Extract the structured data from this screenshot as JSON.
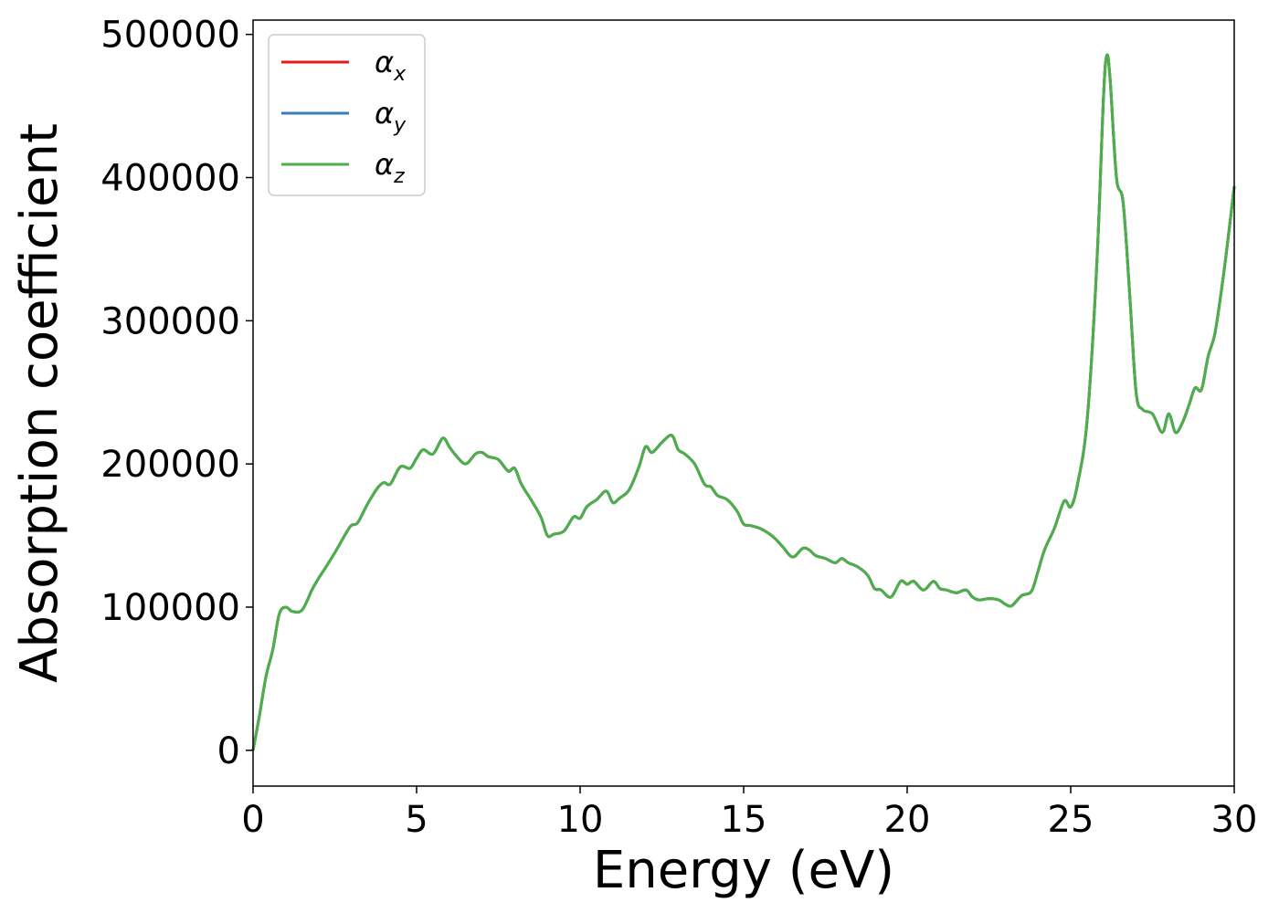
{
  "chart_data": {
    "type": "line",
    "title": "",
    "xlabel": "Energy (eV)",
    "ylabel": "Absorption coefficient",
    "xlim": [
      0,
      30
    ],
    "ylim": [
      -25000,
      510000
    ],
    "xticks": [
      0,
      5,
      10,
      15,
      20,
      25,
      30
    ],
    "yticks": [
      0,
      100000,
      200000,
      300000,
      400000,
      500000
    ],
    "grid": false,
    "legend_position": "upper-left",
    "series": [
      {
        "name": "α",
        "subscript": "x",
        "color": "#e41a1c"
      },
      {
        "name": "α",
        "subscript": "y",
        "color": "#377eb8"
      },
      {
        "name": "α",
        "subscript": "z",
        "color": "#4daf4a"
      }
    ],
    "x": [
      0,
      0.2,
      0.4,
      0.6,
      0.8,
      1.0,
      1.2,
      1.5,
      1.8,
      2.0,
      2.2,
      2.5,
      2.8,
      3.0,
      3.2,
      3.5,
      3.8,
      4.0,
      4.2,
      4.5,
      4.8,
      5.0,
      5.2,
      5.5,
      5.8,
      6.0,
      6.2,
      6.5,
      6.8,
      7.0,
      7.2,
      7.5,
      7.8,
      8.0,
      8.2,
      8.5,
      8.8,
      9.0,
      9.2,
      9.5,
      9.8,
      10.0,
      10.2,
      10.5,
      10.8,
      11.0,
      11.2,
      11.5,
      11.8,
      12.0,
      12.2,
      12.5,
      12.8,
      13.0,
      13.2,
      13.5,
      13.8,
      14.0,
      14.2,
      14.5,
      14.8,
      15.0,
      15.2,
      15.5,
      15.8,
      16.0,
      16.2,
      16.5,
      16.8,
      17.0,
      17.2,
      17.5,
      17.8,
      18.0,
      18.2,
      18.5,
      18.8,
      19.0,
      19.2,
      19.5,
      19.8,
      20.0,
      20.2,
      20.5,
      20.8,
      21.0,
      21.2,
      21.5,
      21.8,
      22.0,
      22.2,
      22.5,
      22.8,
      23.0,
      23.2,
      23.5,
      23.8,
      24.0,
      24.2,
      24.5,
      24.8,
      25.0,
      25.2,
      25.5,
      25.8,
      26.0,
      26.1,
      26.2,
      26.4,
      26.6,
      26.8,
      27.0,
      27.2,
      27.5,
      27.8,
      28.0,
      28.2,
      28.4,
      28.6,
      28.8,
      29.0,
      29.2,
      29.4,
      29.6,
      29.8,
      30.0
    ],
    "y": [
      0,
      25000,
      52000,
      70000,
      95000,
      100000,
      97000,
      98000,
      112000,
      120000,
      127000,
      138000,
      150000,
      157000,
      159000,
      172000,
      183000,
      187000,
      186000,
      198000,
      197000,
      204000,
      210000,
      207000,
      218000,
      212000,
      206000,
      200000,
      207000,
      208000,
      205000,
      203000,
      195000,
      197000,
      186000,
      175000,
      163000,
      150000,
      151000,
      153000,
      163000,
      162000,
      170000,
      175000,
      181000,
      173000,
      176000,
      182000,
      198000,
      212000,
      208000,
      215000,
      220000,
      210000,
      207000,
      200000,
      186000,
      184000,
      178000,
      175000,
      167000,
      158000,
      157000,
      155000,
      151000,
      147000,
      142000,
      135000,
      141000,
      140000,
      136000,
      134000,
      131000,
      134000,
      131000,
      128000,
      122000,
      113000,
      112000,
      107000,
      118000,
      116000,
      118000,
      112000,
      118000,
      113000,
      112000,
      110000,
      112000,
      107000,
      105000,
      106000,
      105000,
      102000,
      101000,
      108000,
      111000,
      125000,
      140000,
      155000,
      174000,
      170000,
      185000,
      230000,
      340000,
      455000,
      485000,
      470000,
      400000,
      383000,
      320000,
      250000,
      238000,
      235000,
      222000,
      235000,
      222000,
      228000,
      240000,
      253000,
      252000,
      275000,
      290000,
      320000,
      355000,
      394000
    ]
  }
}
